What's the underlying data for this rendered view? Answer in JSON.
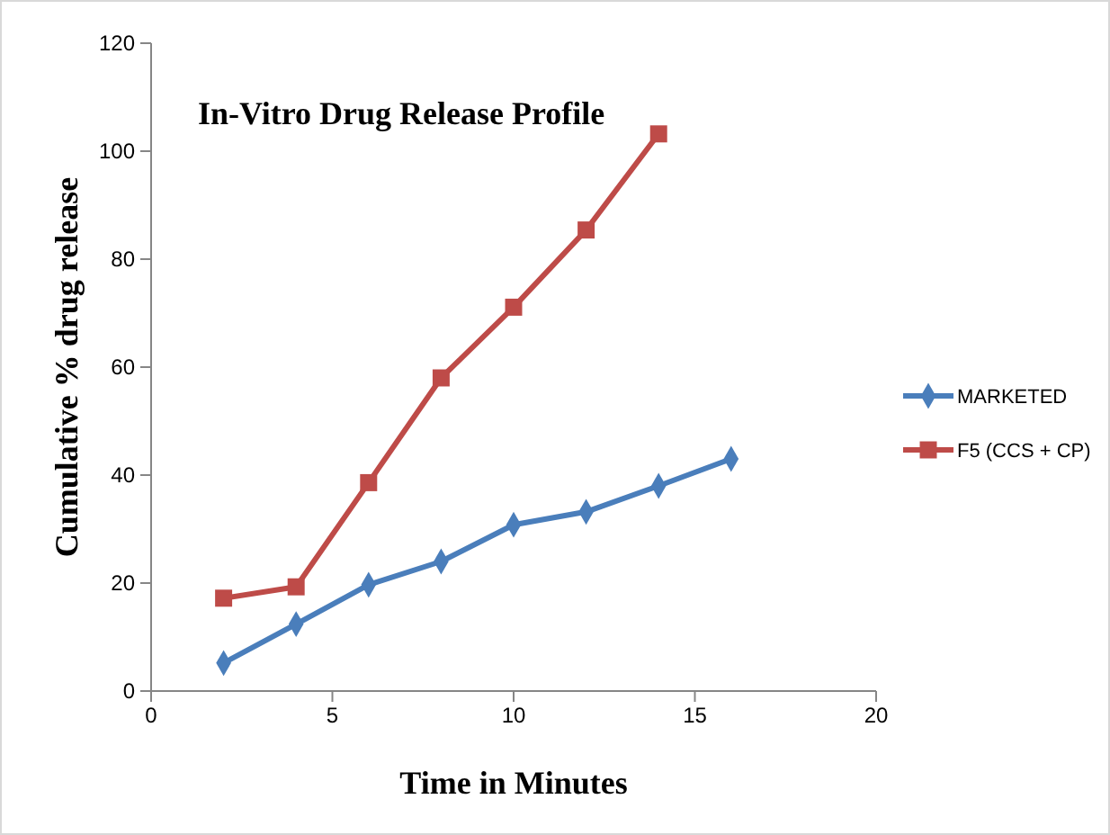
{
  "chart_data": {
    "type": "line",
    "title": "In-Vitro Drug Release Profile",
    "xlabel": "Time in Minutes",
    "ylabel": "Cumulative % drug release",
    "x": [
      2,
      4,
      6,
      8,
      10,
      12,
      14,
      16
    ],
    "series": [
      {
        "name": "MARKETED",
        "color": "#4a7ebb",
        "marker": "diamond",
        "values": [
          5.2,
          12.4,
          19.7,
          24,
          30.8,
          33.2,
          38,
          43
        ]
      },
      {
        "name": "F5 (CCS + CP)",
        "color": "#be4b48",
        "marker": "square",
        "values": [
          17.2,
          19.3,
          38.6,
          58,
          71.1,
          85.4,
          103.2,
          null
        ]
      }
    ],
    "xlim": [
      0,
      20
    ],
    "xticks": [
      0,
      5,
      10,
      15,
      20
    ],
    "ylim": [
      0,
      120
    ],
    "yticks": [
      0,
      20,
      40,
      60,
      80,
      100,
      120
    ],
    "grid": false,
    "legend": "right"
  }
}
